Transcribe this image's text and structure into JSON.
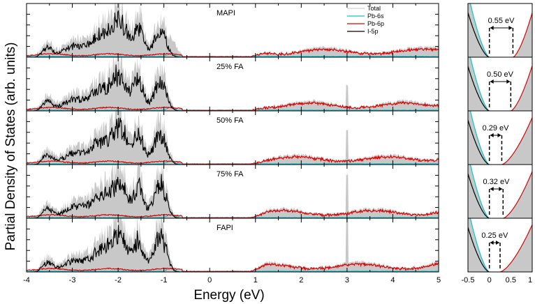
{
  "chart_data": {
    "type": "area",
    "ylabel": "Partial Density of States (arb. units)",
    "xlabel": "Energy (eV)",
    "xlim": [
      -4,
      5
    ],
    "x_ticks": [
      -4,
      -3,
      -2,
      -1,
      0,
      1,
      2,
      3,
      4,
      5
    ],
    "x_tick_labels": [
      "-4",
      "-3",
      "-2",
      "-1",
      "0",
      "1",
      "2",
      "3",
      "4",
      "5"
    ],
    "inset_xlim": [
      -0.5,
      1
    ],
    "inset_x_ticks": [
      -0.5,
      0,
      0.5,
      1
    ],
    "inset_x_tick_labels": [
      "-0.5",
      "0",
      "0.5",
      "1"
    ],
    "legend": [
      {
        "name": "Total",
        "color": "#c8c8c8"
      },
      {
        "name": "Pb-6s",
        "color": "#00c8d8"
      },
      {
        "name": "Pb-6p",
        "color": "#e00000"
      },
      {
        "name": "I-5p",
        "color": "#000000"
      }
    ],
    "panels": [
      {
        "label": "MAPI",
        "band_gap": 0.55,
        "gap_label": "0.55 eV"
      },
      {
        "label": "25% FA",
        "band_gap": 0.5,
        "gap_label": "0.50 eV"
      },
      {
        "label": "50% FA",
        "band_gap": 0.29,
        "gap_label": "0.29 eV"
      },
      {
        "label": "75% FA",
        "band_gap": 0.32,
        "gap_label": "0.32 eV"
      },
      {
        "label": "FAPI",
        "band_gap": 0.25,
        "gap_label": "0.25 eV"
      }
    ]
  }
}
